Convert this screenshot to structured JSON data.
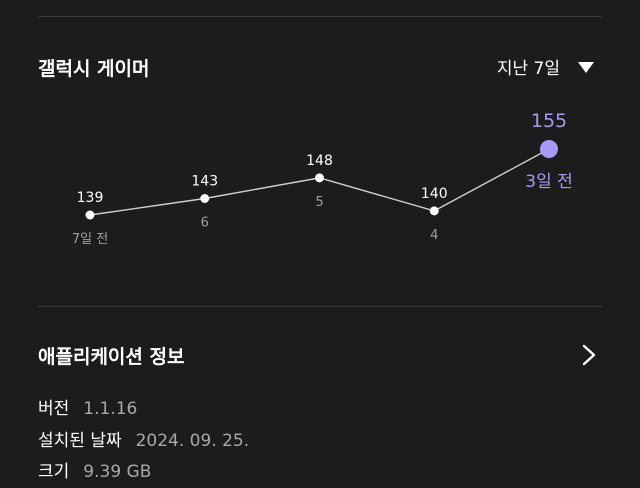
{
  "chart_section": {
    "title": "갤럭시 게이머",
    "range_label": "지난 7일"
  },
  "chart_data": {
    "type": "line",
    "categories": [
      "7일 전",
      "6",
      "5",
      "4",
      "3일 전"
    ],
    "values": [
      139,
      143,
      148,
      140,
      155
    ],
    "highlight_index": 4,
    "line_color": "#d0d0d0",
    "point_color": "#ffffff",
    "highlight_color": "#a79af7",
    "label_color": "#ffffff",
    "category_color": "#a0a0a0"
  },
  "info_section": {
    "title": "애플리케이션 정보",
    "rows": [
      {
        "key": "버전",
        "value": "1.1.16"
      },
      {
        "key": "설치된 날짜",
        "value": "2024. 09. 25."
      },
      {
        "key": "크기",
        "value": "9.39 GB"
      }
    ]
  }
}
